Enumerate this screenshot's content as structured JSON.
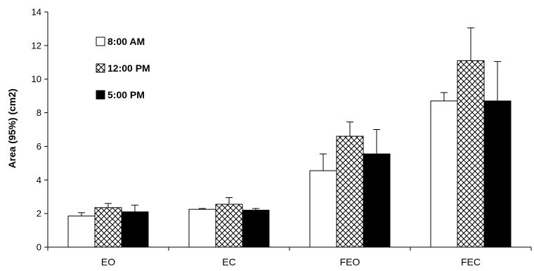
{
  "chart_data": {
    "type": "bar",
    "title": "",
    "xlabel": "",
    "ylabel": "Area (95%) (cm2)",
    "ylim": [
      0,
      14
    ],
    "yticks": [
      0,
      2,
      4,
      6,
      8,
      10,
      12,
      14
    ],
    "categories": [
      "EO",
      "EC",
      "FEO",
      "FEC"
    ],
    "series": [
      {
        "name": "8:00 AM",
        "values": [
          1.85,
          2.25,
          4.55,
          8.7
        ],
        "errors": [
          0.2,
          0.05,
          1.0,
          0.5
        ],
        "pattern": "white"
      },
      {
        "name": "12:00 PM",
        "values": [
          2.35,
          2.55,
          6.6,
          11.1
        ],
        "errors": [
          0.25,
          0.4,
          0.85,
          1.95
        ],
        "pattern": "crosshatch"
      },
      {
        "name": "5:00 PM",
        "values": [
          2.1,
          2.2,
          5.55,
          8.7
        ],
        "errors": [
          0.4,
          0.1,
          1.45,
          2.35
        ],
        "pattern": "black"
      }
    ],
    "legend_position": "top-left",
    "grid": false
  }
}
